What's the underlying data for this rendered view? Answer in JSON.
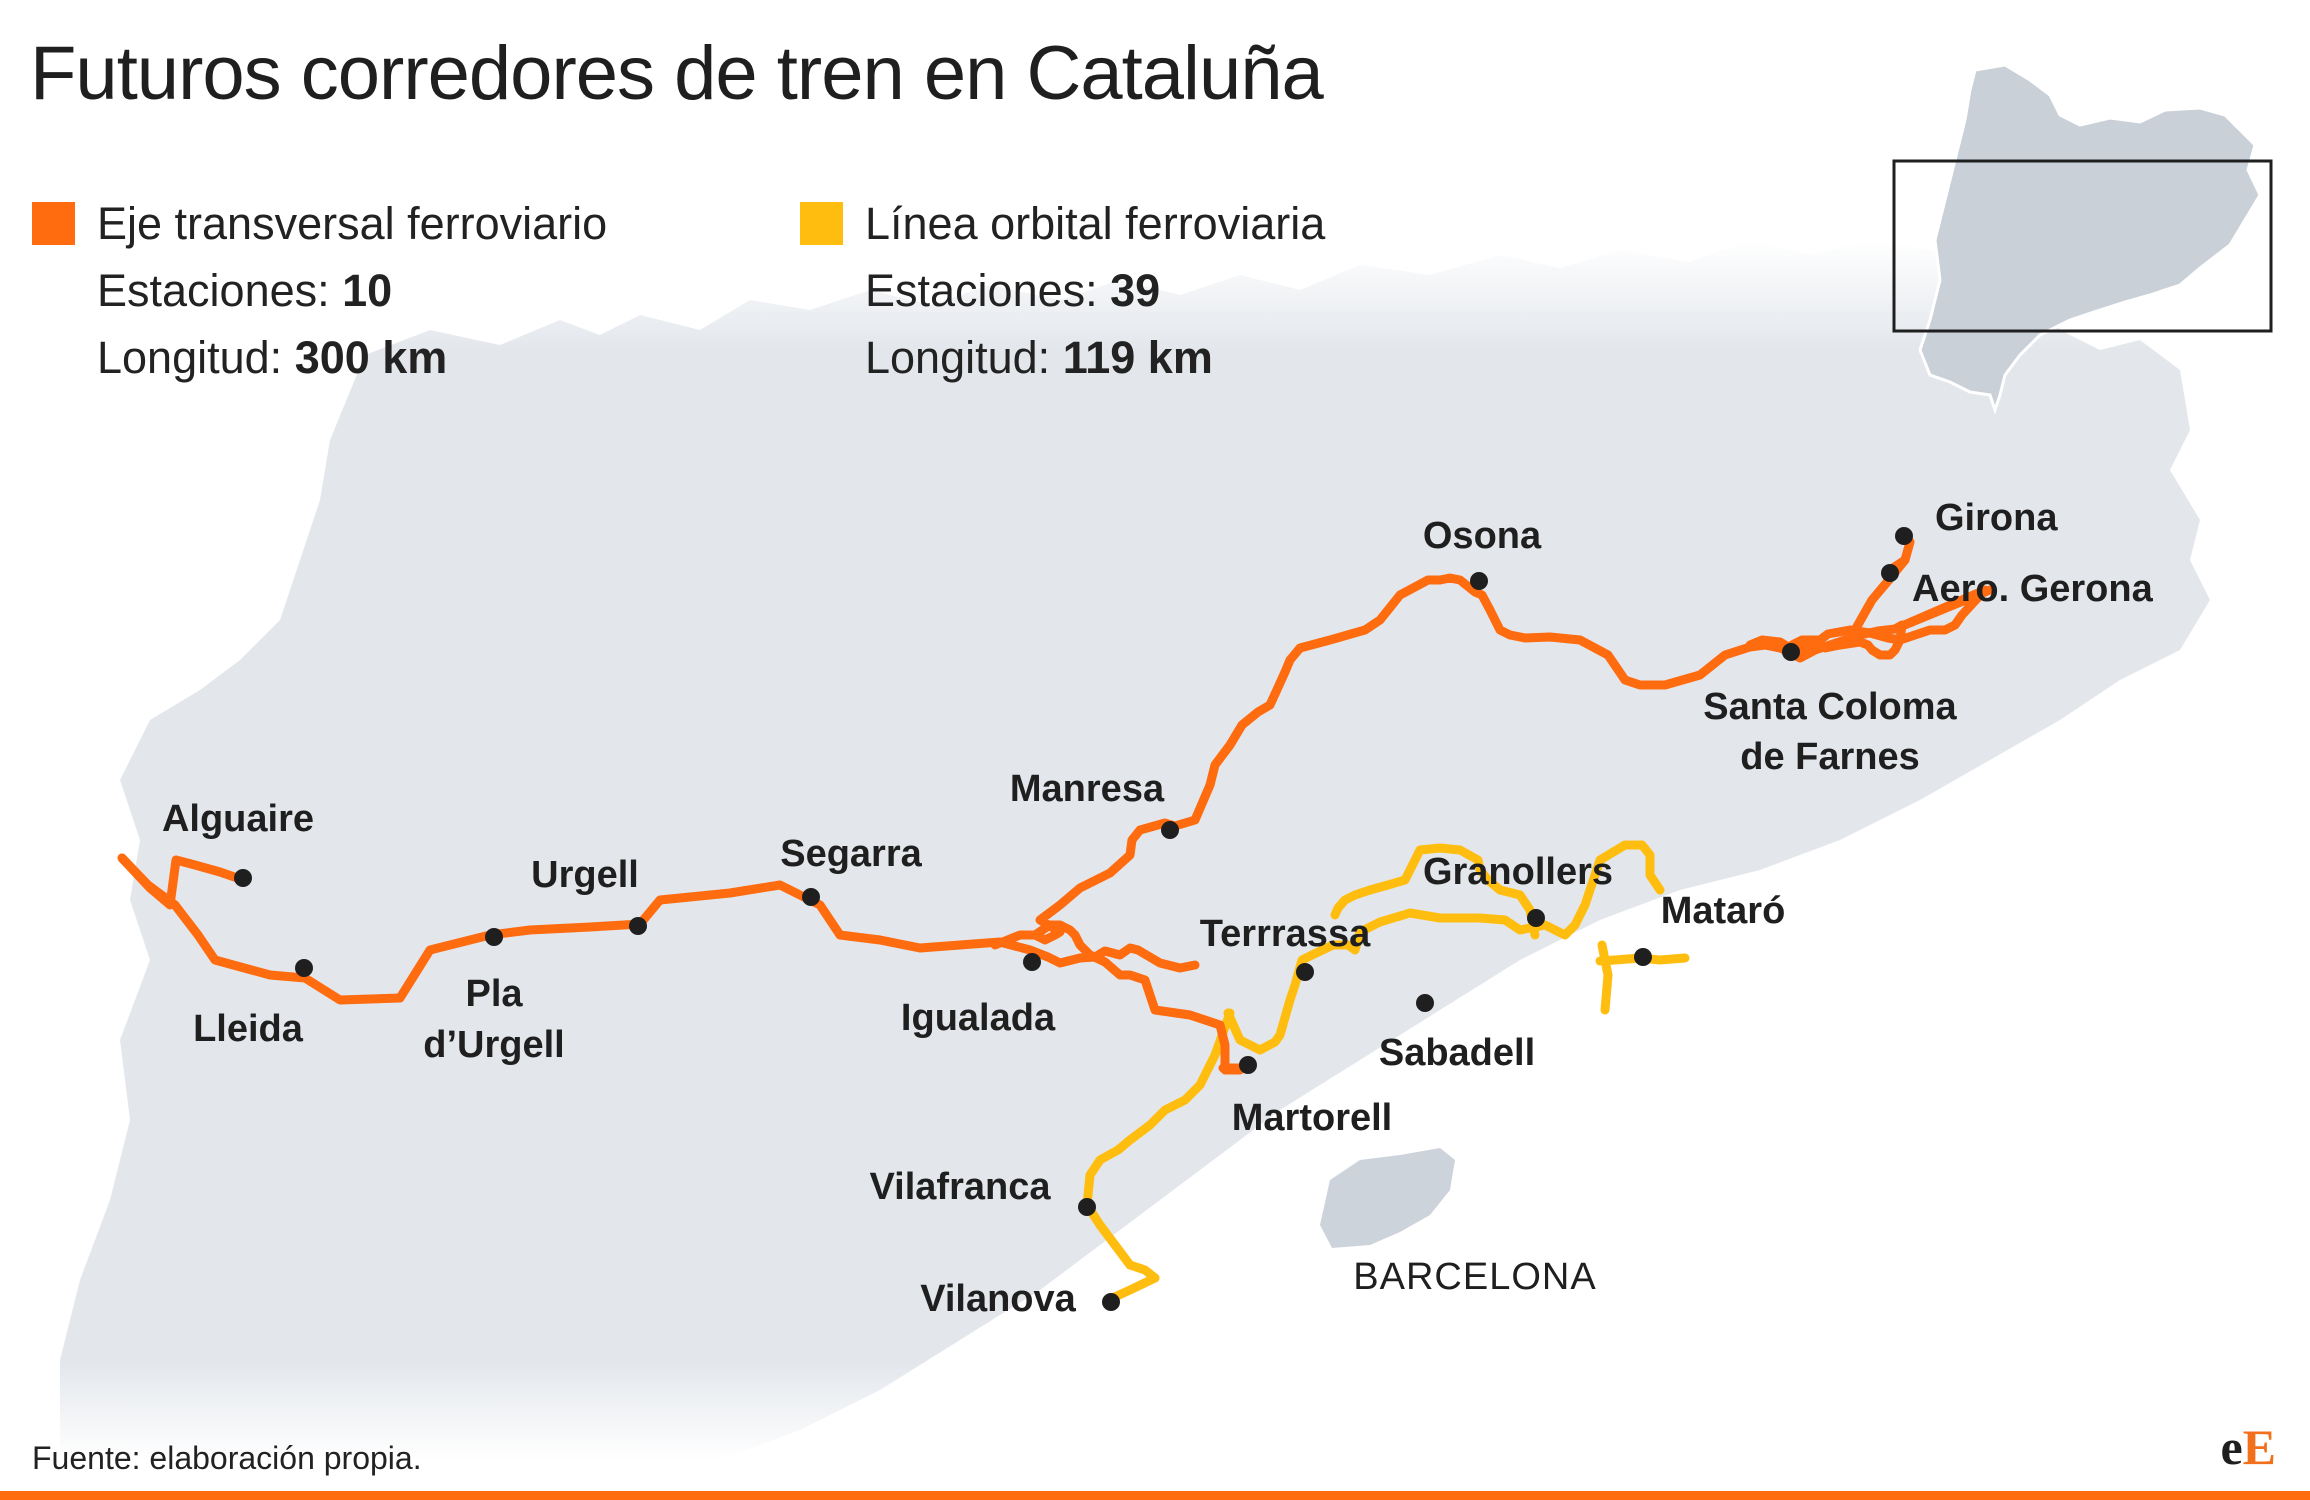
{
  "title": "Futuros corredores de tren en Cataluña",
  "colors": {
    "eje_transversal": "#ff6b0f",
    "linea_orbital": "#ffbe0f",
    "land": "#e3e7ec",
    "barcelona_area": "#cdd3da",
    "station_dot": "#1f1f1f"
  },
  "legend": {
    "eje": {
      "name": "Eje transversal ferroviario",
      "stations_label": "Estaciones:",
      "stations_value": "10",
      "length_label": "Longitud:",
      "length_value": "300 km"
    },
    "orbital": {
      "name": "Línea orbital ferroviaria",
      "stations_label": "Estaciones:",
      "stations_value": "39",
      "length_label": "Longitud:",
      "length_value": "119 km"
    }
  },
  "stations": {
    "girona": "Girona",
    "aero_gerona": "Aero. Gerona",
    "santa_coloma_1": "Santa Coloma",
    "santa_coloma_2": "de Farnes",
    "osona": "Osona",
    "manresa": "Manresa",
    "segarra": "Segarra",
    "urgell": "Urgell",
    "alguaire": "Alguaire",
    "lleida": "Lleida",
    "pla_1": "Pla",
    "pla_2": "d’Urgell",
    "igualada": "Igualada",
    "terrrassa": "Terrrassa",
    "granollers": "Granollers",
    "mataro": "Mataró",
    "sabadell": "Sabadell",
    "martorell": "Martorell",
    "vilafranca": "Vilafranca",
    "vilanova": "Vilanova"
  },
  "city": "BARCELONA",
  "source": "Fuente: elaboración propia.",
  "logo": {
    "part1": "e",
    "part2": "E"
  }
}
